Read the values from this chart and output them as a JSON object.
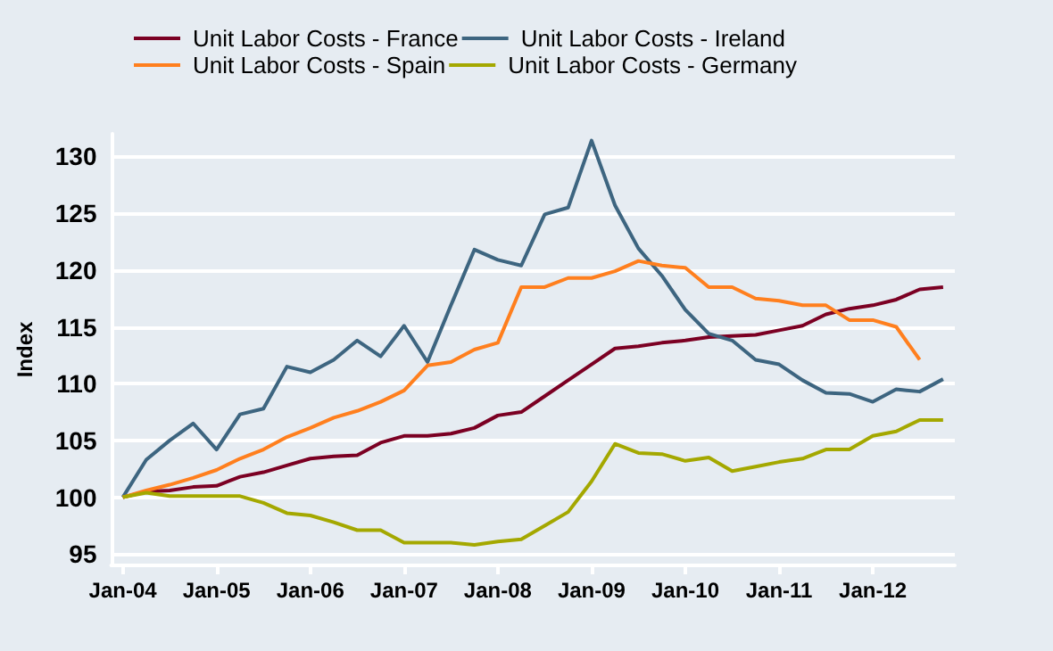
{
  "chart_data": {
    "type": "line",
    "ylabel": "Index",
    "categories": [
      "Jan-04",
      null,
      null,
      null,
      "Jan-05",
      null,
      null,
      null,
      "Jan-06",
      null,
      null,
      null,
      "Jan-07",
      null,
      null,
      null,
      "Jan-08",
      null,
      null,
      null,
      "Jan-09",
      null,
      null,
      null,
      "Jan-10",
      null,
      null,
      null,
      "Jan-11",
      null,
      null,
      null,
      "Jan-12",
      null,
      null,
      null
    ],
    "series": [
      {
        "name": "Unit Labor Costs - France",
        "color": "#7b0023",
        "values": [
          100,
          100.5,
          100.6,
          100.9,
          101,
          101.8,
          102.2,
          102.8,
          103.4,
          103.6,
          103.7,
          104.8,
          105.4,
          105.4,
          105.6,
          106.1,
          107.2,
          107.5,
          108.9,
          110.3,
          111.7,
          113.1,
          113.3,
          113.6,
          113.8,
          114.1,
          114.2,
          114.3,
          114.7,
          115.1,
          116.1,
          116.6,
          116.9,
          117.4,
          118.3,
          118.5
        ]
      },
      {
        "name": "Unit Labor Costs - Ireland",
        "color": "#3d6580",
        "values": [
          100,
          103.3,
          105,
          106.5,
          104.2,
          107.3,
          107.8,
          111.5,
          111,
          112.1,
          113.8,
          112.4,
          115.1,
          111.9,
          116.9,
          121.8,
          120.9,
          120.4,
          124.9,
          125.5,
          131.4,
          125.7,
          121.9,
          119.5,
          116.5,
          114.4,
          113.8,
          112.1,
          111.7,
          110.3,
          109.2,
          109.1,
          108.4,
          109.5,
          109.3,
          110.4
        ]
      },
      {
        "name": "Unit Labor Costs - Spain",
        "color": "#ff7f1e",
        "values": [
          100,
          100.6,
          101.1,
          101.7,
          102.4,
          103.4,
          104.2,
          105.3,
          106.1,
          107,
          107.6,
          108.4,
          109.4,
          111.6,
          111.9,
          113,
          113.6,
          118.5,
          118.5,
          119.3,
          119.3,
          119.9,
          120.8,
          120.4,
          120.2,
          118.5,
          118.5,
          117.5,
          117.3,
          116.9,
          116.9,
          115.6,
          115.6,
          115,
          112.1,
          null
        ]
      },
      {
        "name": "Unit Labor Costs - Germany",
        "color": "#a4a800",
        "values": [
          100,
          100.4,
          100.1,
          100.1,
          100.1,
          100.1,
          99.5,
          98.6,
          98.4,
          97.8,
          97.1,
          97.1,
          96,
          96,
          96,
          95.8,
          96.1,
          96.3,
          97.5,
          98.7,
          101.4,
          104.7,
          103.9,
          103.8,
          103.2,
          103.5,
          102.3,
          102.7,
          103.1,
          103.4,
          104.2,
          104.2,
          105.4,
          105.8,
          106.8,
          106.8
        ]
      }
    ],
    "ylim": [
      94,
      132
    ],
    "yticks": [
      95,
      100,
      105,
      110,
      115,
      120,
      125,
      130
    ],
    "grid": "y",
    "legend": "top",
    "marker": "none",
    "line_style": "solid"
  }
}
